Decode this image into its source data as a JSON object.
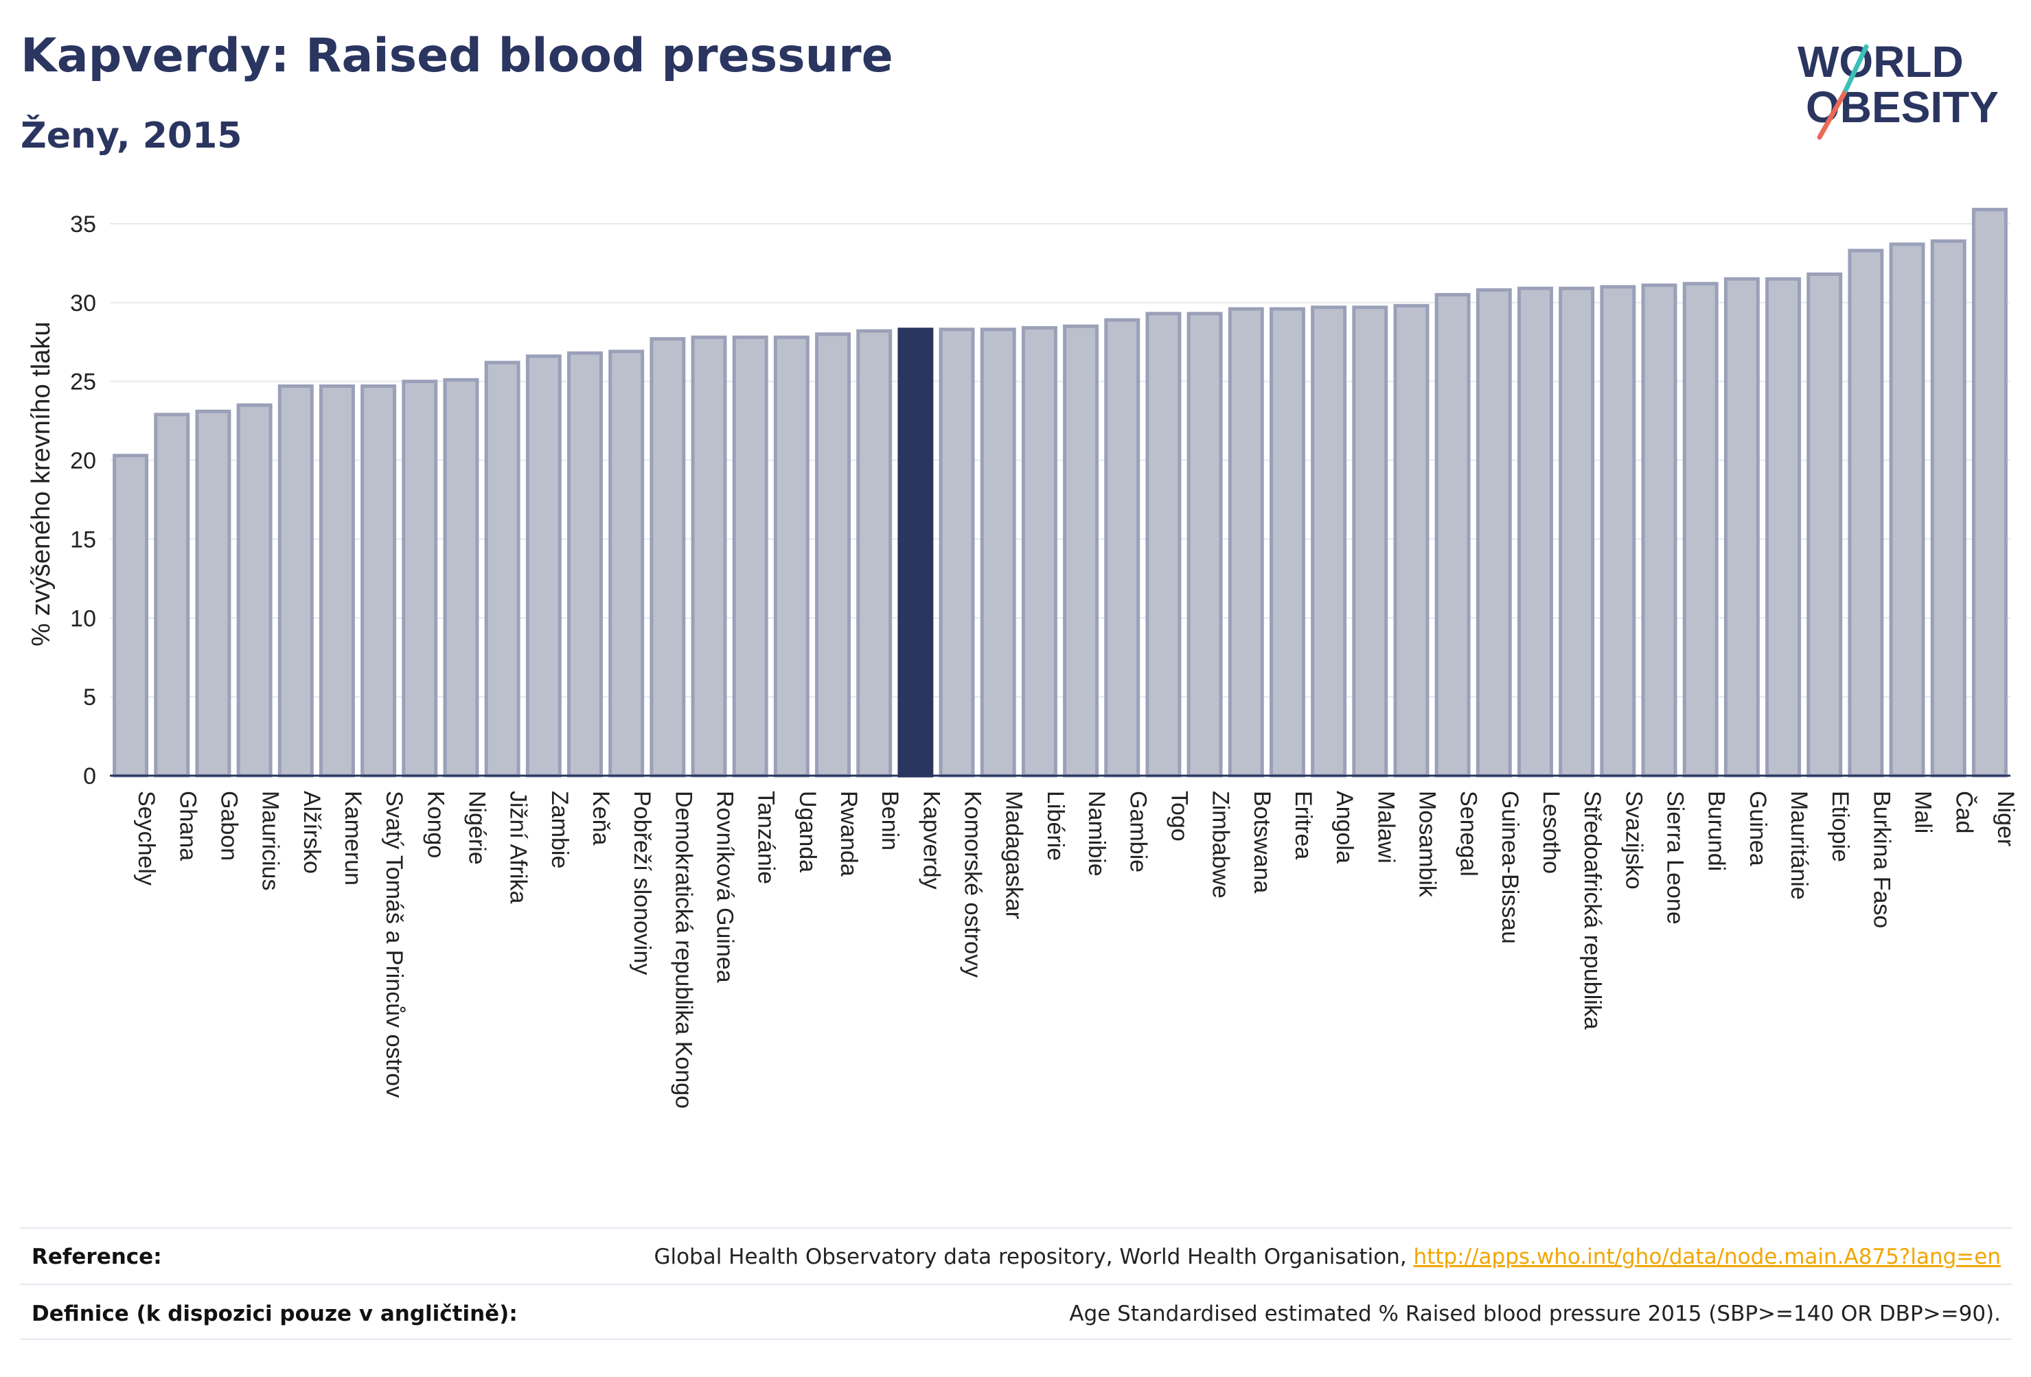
{
  "header": {
    "title": "Kapverdy: Raised blood pressure",
    "subtitle": "Ženy, 2015"
  },
  "logo": {
    "line1": "WORLD",
    "line2": "OBESITY",
    "colors": {
      "text": "#2a3560",
      "slash_teal": "#3bbfb8",
      "slash_coral": "#ea6a58"
    }
  },
  "colors": {
    "bar_fill": "#bcc0cd",
    "bar_stroke": "#9aa0b8",
    "highlight": "#2a3560",
    "grid": "#e6e8ee",
    "axis": "#2a3560"
  },
  "chart_data": {
    "type": "bar",
    "ylabel": "% zvýšeného krevního tlaku",
    "ylim": [
      0,
      37
    ],
    "yticks": [
      0,
      5,
      10,
      15,
      20,
      25,
      30,
      35
    ],
    "grid": true,
    "highlight": "Kapverdy",
    "categories": [
      "Seychely",
      "Ghana",
      "Gabon",
      "Mauricius",
      "Alžírsko",
      "Kamerun",
      "Svatý Tomáš a Princův ostrov",
      "Kongo",
      "Nigérie",
      "Jižní Afrika",
      "Zambie",
      "Keňa",
      "Pobřeží slonoviny",
      "Demokratická republika Kongo",
      "Rovníková Guinea",
      "Tanzánie",
      "Uganda",
      "Rwanda",
      "Benin",
      "Kapverdy",
      "Komorské ostrovy",
      "Madagaskar",
      "Libérie",
      "Namibie",
      "Gambie",
      "Togo",
      "Zimbabwe",
      "Botswana",
      "Eritrea",
      "Angola",
      "Malawi",
      "Mosambik",
      "Senegal",
      "Guinea-Bissau",
      "Lesotho",
      "Středoafrická republika",
      "Svazijsko",
      "Sierra Leone",
      "Burundi",
      "Guinea",
      "Mauritánie",
      "Etiopie",
      "Burkina Faso",
      "Mali",
      "Čad",
      "Niger"
    ],
    "values": [
      20.3,
      22.9,
      23.1,
      23.5,
      24.7,
      24.7,
      24.7,
      25.0,
      25.1,
      26.2,
      26.6,
      26.8,
      26.9,
      27.7,
      27.8,
      27.8,
      27.8,
      28.0,
      28.2,
      28.3,
      28.3,
      28.3,
      28.4,
      28.5,
      28.9,
      29.3,
      29.3,
      29.6,
      29.6,
      29.7,
      29.7,
      29.8,
      30.5,
      30.8,
      30.9,
      30.9,
      31.0,
      31.1,
      31.2,
      31.5,
      31.5,
      31.8,
      33.3,
      33.7,
      33.9,
      35.9
    ]
  },
  "footer": {
    "reference_label": "Reference:",
    "reference_text": "Global Health Observatory data repository, World Health Organisation, ",
    "reference_link": "http://apps.who.int/gho/data/node.main.A875?lang=en",
    "definition_label": "Definice (k dispozici pouze v angličtině):",
    "definition_text": "Age Standardised estimated % Raised blood pressure 2015 (SBP>=140 OR DBP>=90)."
  }
}
